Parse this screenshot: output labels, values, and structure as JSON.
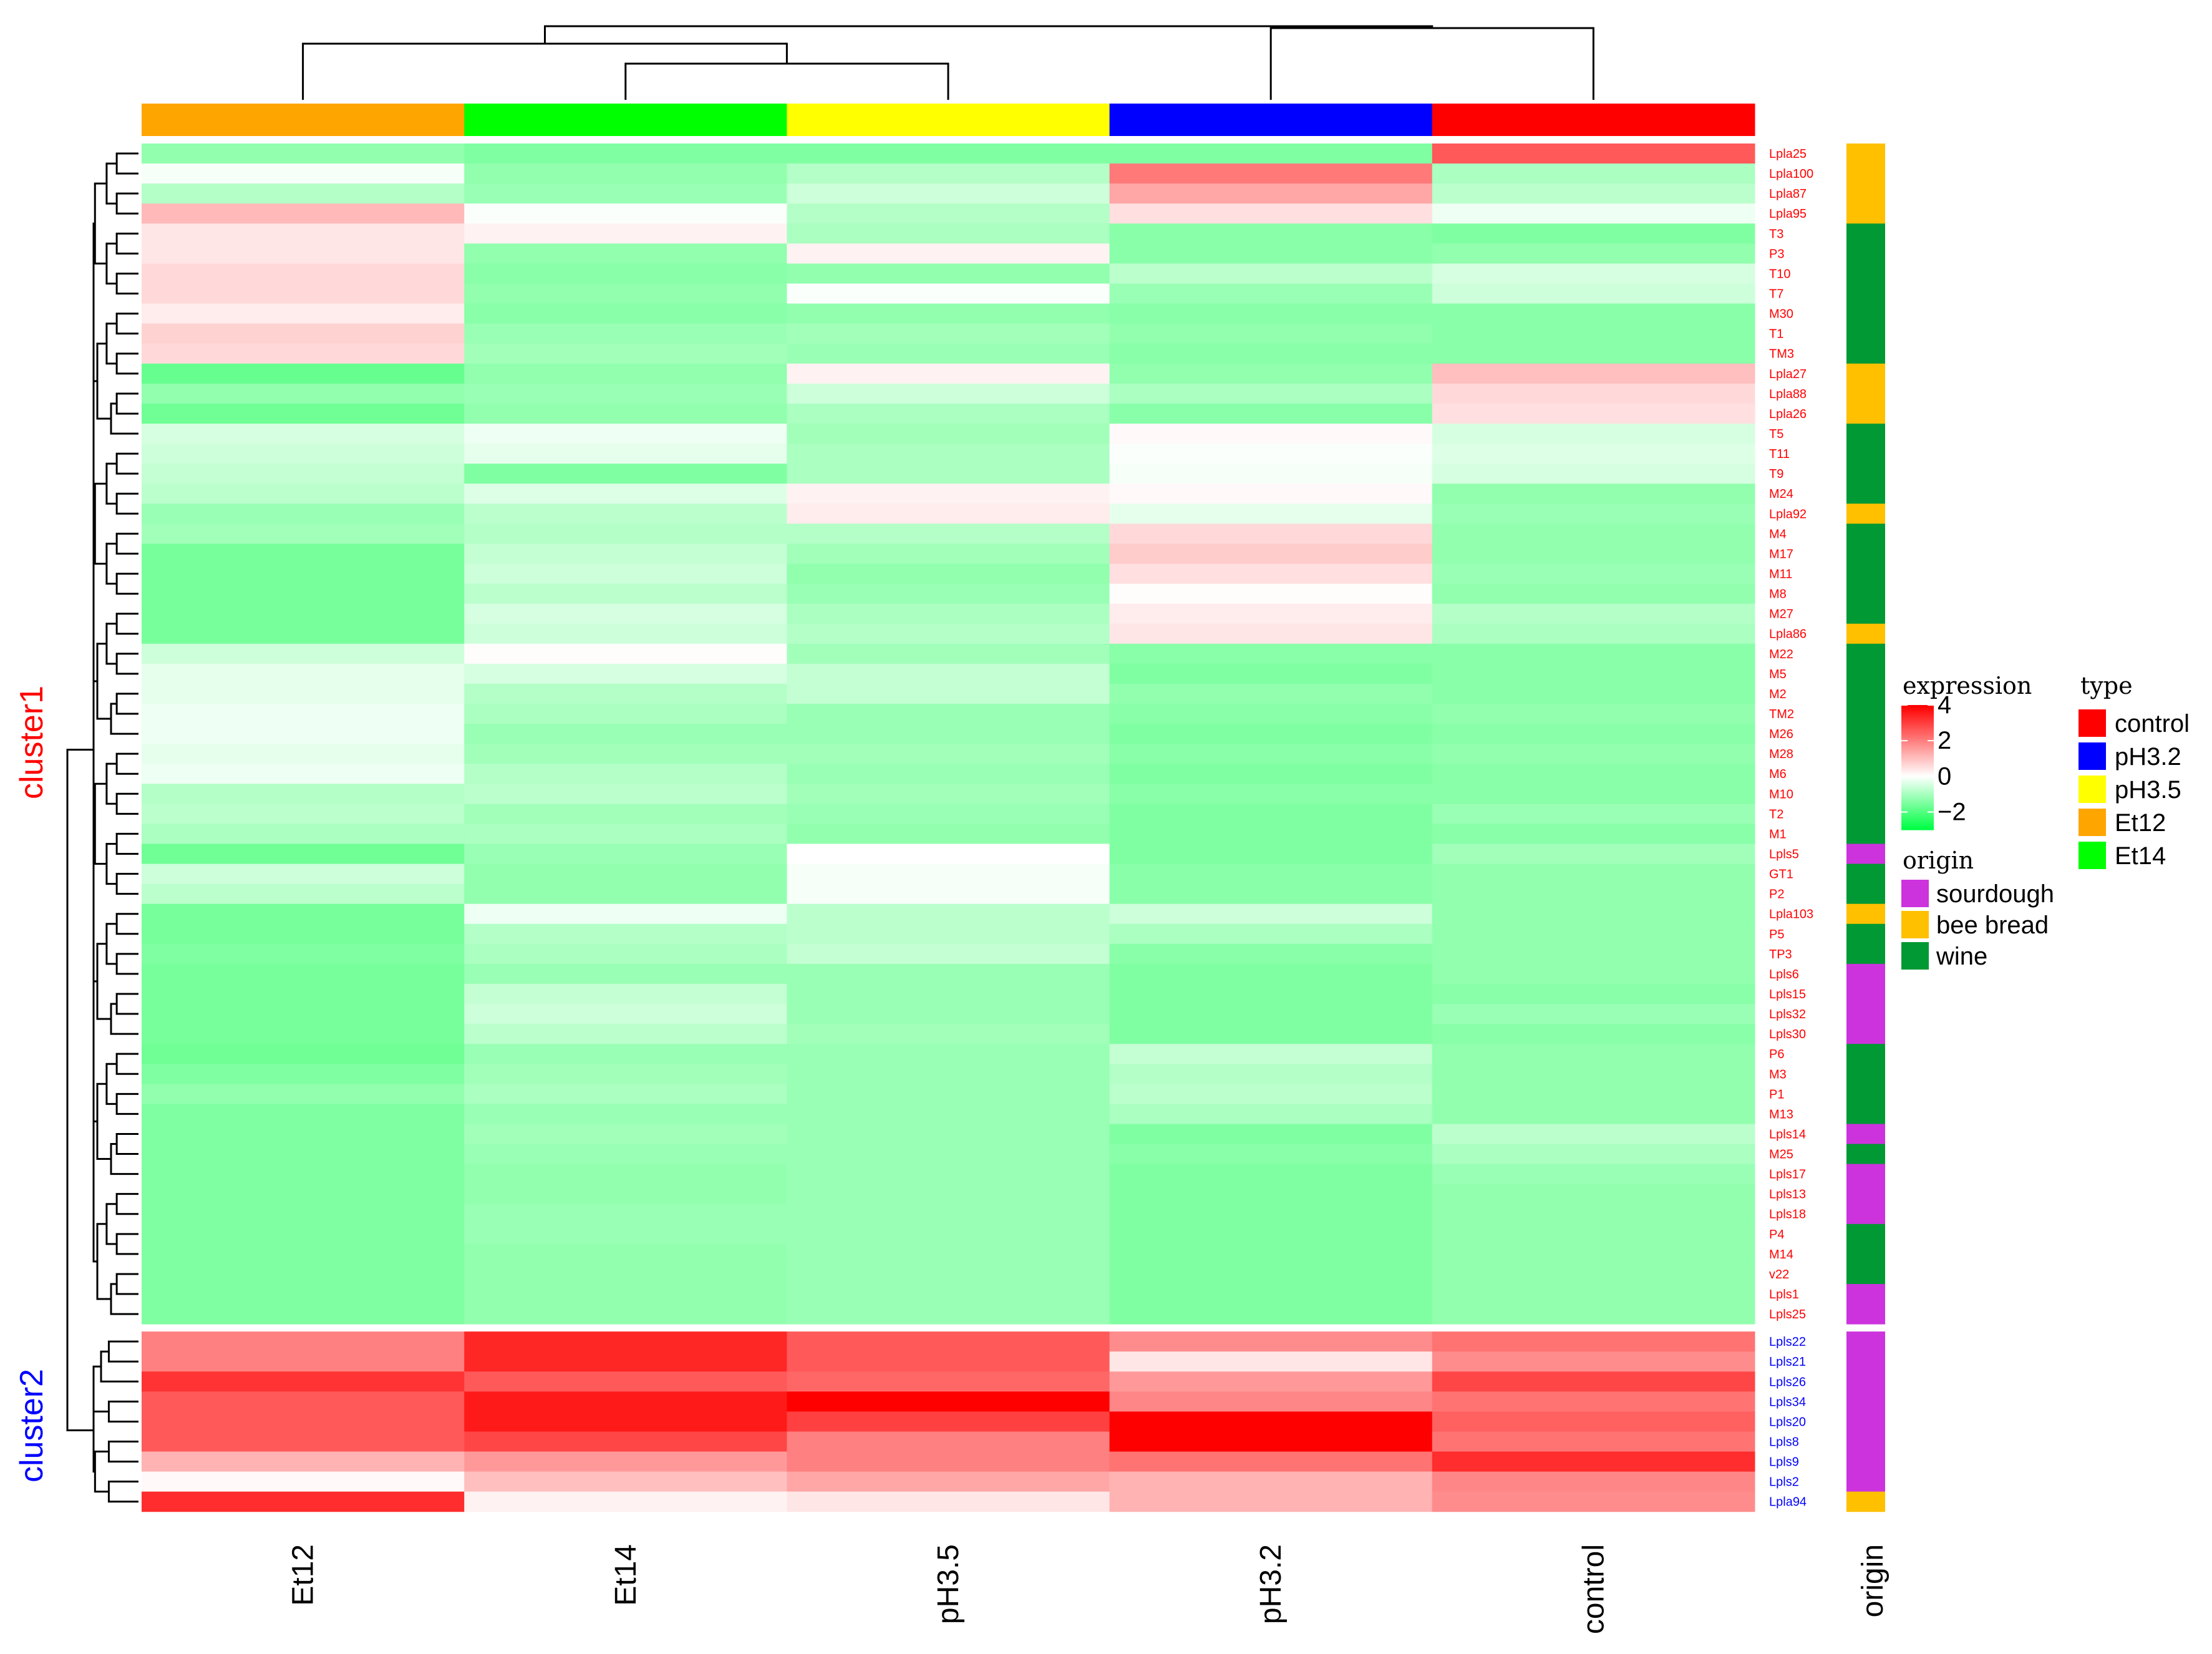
{
  "chart_data": {
    "type": "heatmap",
    "columns": [
      "Et12",
      "Et14",
      "pH3.5",
      "pH3.2",
      "control"
    ],
    "column_types": [
      "Et12",
      "Et14",
      "pH3.5",
      "pH3.2",
      "control"
    ],
    "origin_axis_label": "origin",
    "cluster_labels": [
      "cluster1",
      "cluster2"
    ],
    "colors": {
      "cluster1": "#ff0000",
      "cluster2": "#0000ff",
      "low": "#00ff44",
      "mid": "#ffffff",
      "high": "#ff0000"
    },
    "type_colors": {
      "control": "#ff0000",
      "pH3.2": "#0000ff",
      "pH3.5": "#ffff00",
      "Et12": "#ffa500",
      "Et14": "#00ff00"
    },
    "origin_colors": {
      "sourdough": "#cc33dd",
      "bee bread": "#ffc000",
      "wine": "#009933"
    },
    "legend": {
      "expression_title": "expression",
      "expression_ticks": [
        {
          "label": "4",
          "value": 4
        },
        {
          "label": "2",
          "value": 2
        },
        {
          "label": "0",
          "value": 0
        },
        {
          "label": "−2",
          "value": -2
        }
      ],
      "expression_range": [
        -3,
        4
      ],
      "type_title": "type",
      "type_entries": [
        "control",
        "pH3.2",
        "pH3.5",
        "Et12",
        "Et14"
      ],
      "origin_title": "origin",
      "origin_entries": [
        "sourdough",
        "bee bread",
        "wine"
      ]
    },
    "rows": [
      {
        "label": "Lpla25",
        "cluster": 1,
        "origin": "bee bread",
        "values": [
          -1.3,
          -1.5,
          -1.5,
          -1.5,
          2.6
        ]
      },
      {
        "label": "Lpla100",
        "cluster": 1,
        "origin": "bee bread",
        "values": [
          -0.1,
          -1.3,
          -0.9,
          2.1,
          -1.0
        ]
      },
      {
        "label": "Lpla87",
        "cluster": 1,
        "origin": "bee bread",
        "values": [
          -0.9,
          -1.2,
          -0.6,
          1.4,
          -0.8
        ]
      },
      {
        "label": "Lpla95",
        "cluster": 1,
        "origin": "bee bread",
        "values": [
          1.1,
          -0.05,
          -0.9,
          0.5,
          -0.2
        ]
      },
      {
        "label": "T3",
        "cluster": 1,
        "origin": "wine",
        "values": [
          0.4,
          0.2,
          -1.0,
          -1.4,
          -1.5
        ]
      },
      {
        "label": "P3",
        "cluster": 1,
        "origin": "wine",
        "values": [
          0.4,
          -1.3,
          0.2,
          -1.4,
          -1.3
        ]
      },
      {
        "label": "T10",
        "cluster": 1,
        "origin": "wine",
        "values": [
          0.6,
          -1.4,
          -1.3,
          -0.8,
          -0.5
        ]
      },
      {
        "label": "T7",
        "cluster": 1,
        "origin": "wine",
        "values": [
          0.6,
          -1.3,
          -0.05,
          -1.2,
          -0.6
        ]
      },
      {
        "label": "M30",
        "cluster": 1,
        "origin": "wine",
        "values": [
          0.3,
          -1.4,
          -1.3,
          -1.4,
          -1.4
        ]
      },
      {
        "label": "T1",
        "cluster": 1,
        "origin": "wine",
        "values": [
          0.7,
          -1.2,
          -1.1,
          -1.3,
          -1.4
        ]
      },
      {
        "label": "TM3",
        "cluster": 1,
        "origin": "wine",
        "values": [
          0.6,
          -1.1,
          -1.2,
          -1.4,
          -1.4
        ]
      },
      {
        "label": "Lpla27",
        "cluster": 1,
        "origin": "bee bread",
        "values": [
          -1.8,
          -1.3,
          0.2,
          -1.3,
          1.0
        ]
      },
      {
        "label": "Lpla88",
        "cluster": 1,
        "origin": "bee bread",
        "values": [
          -1.3,
          -1.2,
          -0.6,
          -1.0,
          0.6
        ]
      },
      {
        "label": "Lpla26",
        "cluster": 1,
        "origin": "bee bread",
        "values": [
          -1.7,
          -1.3,
          -1.0,
          -1.4,
          0.5
        ]
      },
      {
        "label": "T5",
        "cluster": 1,
        "origin": "wine",
        "values": [
          -0.5,
          -0.2,
          -1.1,
          0.1,
          -0.5
        ]
      },
      {
        "label": "T11",
        "cluster": 1,
        "origin": "wine",
        "values": [
          -0.6,
          -0.3,
          -1.0,
          -0.05,
          -0.4
        ]
      },
      {
        "label": "T9",
        "cluster": 1,
        "origin": "wine",
        "values": [
          -0.7,
          -1.5,
          -1.0,
          -0.1,
          -0.5
        ]
      },
      {
        "label": "M24",
        "cluster": 1,
        "origin": "wine",
        "values": [
          -0.8,
          -0.4,
          0.2,
          0.1,
          -1.3
        ]
      },
      {
        "label": "Lpla92",
        "cluster": 1,
        "origin": "bee bread",
        "values": [
          -1.2,
          -0.8,
          0.3,
          -0.3,
          -1.2
        ]
      },
      {
        "label": "M4",
        "cluster": 1,
        "origin": "wine",
        "values": [
          -1.1,
          -0.9,
          -0.9,
          0.6,
          -1.3
        ]
      },
      {
        "label": "M17",
        "cluster": 1,
        "origin": "wine",
        "values": [
          -1.6,
          -0.7,
          -1.1,
          0.8,
          -1.3
        ]
      },
      {
        "label": "M11",
        "cluster": 1,
        "origin": "wine",
        "values": [
          -1.6,
          -0.6,
          -1.3,
          0.5,
          -1.2
        ]
      },
      {
        "label": "M8",
        "cluster": 1,
        "origin": "wine",
        "values": [
          -1.6,
          -0.8,
          -1.2,
          0.05,
          -1.3
        ]
      },
      {
        "label": "M27",
        "cluster": 1,
        "origin": "wine",
        "values": [
          -1.6,
          -0.5,
          -1.0,
          0.3,
          -0.9
        ]
      },
      {
        "label": "Lpla86",
        "cluster": 1,
        "origin": "bee bread",
        "values": [
          -1.6,
          -0.6,
          -0.9,
          0.4,
          -1.0
        ]
      },
      {
        "label": "M22",
        "cluster": 1,
        "origin": "wine",
        "values": [
          -0.6,
          0.05,
          -1.1,
          -1.4,
          -1.4
        ]
      },
      {
        "label": "M5",
        "cluster": 1,
        "origin": "wine",
        "values": [
          -0.3,
          -0.5,
          -0.7,
          -1.5,
          -1.4
        ]
      },
      {
        "label": "M2",
        "cluster": 1,
        "origin": "wine",
        "values": [
          -0.3,
          -0.9,
          -0.7,
          -1.3,
          -1.4
        ]
      },
      {
        "label": "TM2",
        "cluster": 1,
        "origin": "wine",
        "values": [
          -0.2,
          -1.0,
          -1.2,
          -1.4,
          -1.3
        ]
      },
      {
        "label": "M26",
        "cluster": 1,
        "origin": "wine",
        "values": [
          -0.2,
          -1.2,
          -1.2,
          -1.5,
          -1.4
        ]
      },
      {
        "label": "M28",
        "cluster": 1,
        "origin": "wine",
        "values": [
          -0.3,
          -1.1,
          -1.1,
          -1.4,
          -1.3
        ]
      },
      {
        "label": "M6",
        "cluster": 1,
        "origin": "wine",
        "values": [
          -0.2,
          -0.9,
          -1.2,
          -1.5,
          -1.4
        ]
      },
      {
        "label": "M10",
        "cluster": 1,
        "origin": "wine",
        "values": [
          -0.9,
          -0.8,
          -1.1,
          -1.4,
          -1.4
        ]
      },
      {
        "label": "T2",
        "cluster": 1,
        "origin": "wine",
        "values": [
          -0.8,
          -1.1,
          -1.2,
          -1.5,
          -1.2
        ]
      },
      {
        "label": "M1",
        "cluster": 1,
        "origin": "wine",
        "values": [
          -1.0,
          -1.0,
          -1.3,
          -1.5,
          -1.4
        ]
      },
      {
        "label": "Lpls5",
        "cluster": 1,
        "origin": "sourdough",
        "values": [
          -1.7,
          -1.2,
          0.0,
          -1.5,
          -1.1
        ]
      },
      {
        "label": "GT1",
        "cluster": 1,
        "origin": "wine",
        "values": [
          -0.6,
          -1.3,
          -0.1,
          -1.4,
          -1.3
        ]
      },
      {
        "label": "P2",
        "cluster": 1,
        "origin": "wine",
        "values": [
          -0.8,
          -1.3,
          -0.1,
          -1.4,
          -1.3
        ]
      },
      {
        "label": "Lpla103",
        "cluster": 1,
        "origin": "bee bread",
        "values": [
          -1.6,
          -0.2,
          -0.8,
          -0.6,
          -1.3
        ]
      },
      {
        "label": "P5",
        "cluster": 1,
        "origin": "wine",
        "values": [
          -1.6,
          -0.9,
          -0.8,
          -1.0,
          -1.3
        ]
      },
      {
        "label": "TP3",
        "cluster": 1,
        "origin": "wine",
        "values": [
          -1.5,
          -1.0,
          -0.7,
          -1.4,
          -1.3
        ]
      },
      {
        "label": "Lpls6",
        "cluster": 1,
        "origin": "sourdough",
        "values": [
          -1.6,
          -1.2,
          -1.2,
          -1.5,
          -1.3
        ]
      },
      {
        "label": "Lpls15",
        "cluster": 1,
        "origin": "sourdough",
        "values": [
          -1.6,
          -0.7,
          -1.2,
          -1.5,
          -1.4
        ]
      },
      {
        "label": "Lpls32",
        "cluster": 1,
        "origin": "sourdough",
        "values": [
          -1.6,
          -0.6,
          -1.2,
          -1.5,
          -1.2
        ]
      },
      {
        "label": "Lpls30",
        "cluster": 1,
        "origin": "sourdough",
        "values": [
          -1.6,
          -0.8,
          -1.1,
          -1.5,
          -1.4
        ]
      },
      {
        "label": "P6",
        "cluster": 1,
        "origin": "wine",
        "values": [
          -1.7,
          -1.2,
          -1.2,
          -0.7,
          -1.3
        ]
      },
      {
        "label": "M3",
        "cluster": 1,
        "origin": "wine",
        "values": [
          -1.5,
          -1.1,
          -1.2,
          -0.9,
          -1.3
        ]
      },
      {
        "label": "P1",
        "cluster": 1,
        "origin": "wine",
        "values": [
          -1.3,
          -1.0,
          -1.2,
          -0.8,
          -1.3
        ]
      },
      {
        "label": "M13",
        "cluster": 1,
        "origin": "wine",
        "values": [
          -1.5,
          -1.2,
          -1.2,
          -1.0,
          -1.3
        ]
      },
      {
        "label": "Lpls14",
        "cluster": 1,
        "origin": "sourdough",
        "values": [
          -1.5,
          -1.1,
          -1.2,
          -1.5,
          -0.8
        ]
      },
      {
        "label": "M25",
        "cluster": 1,
        "origin": "wine",
        "values": [
          -1.5,
          -1.2,
          -1.2,
          -1.4,
          -1.0
        ]
      },
      {
        "label": "Lpls17",
        "cluster": 1,
        "origin": "sourdough",
        "values": [
          -1.5,
          -1.3,
          -1.2,
          -1.5,
          -1.2
        ]
      },
      {
        "label": "Lpls13",
        "cluster": 1,
        "origin": "sourdough",
        "values": [
          -1.5,
          -1.3,
          -1.2,
          -1.5,
          -1.3
        ]
      },
      {
        "label": "Lpls18",
        "cluster": 1,
        "origin": "sourdough",
        "values": [
          -1.5,
          -1.2,
          -1.2,
          -1.5,
          -1.3
        ]
      },
      {
        "label": "P4",
        "cluster": 1,
        "origin": "wine",
        "values": [
          -1.5,
          -1.2,
          -1.2,
          -1.5,
          -1.3
        ]
      },
      {
        "label": "M14",
        "cluster": 1,
        "origin": "wine",
        "values": [
          -1.5,
          -1.3,
          -1.2,
          -1.5,
          -1.3
        ]
      },
      {
        "label": "v22",
        "cluster": 1,
        "origin": "wine",
        "values": [
          -1.5,
          -1.3,
          -1.2,
          -1.5,
          -1.3
        ]
      },
      {
        "label": "Lpls1",
        "cluster": 1,
        "origin": "sourdough",
        "values": [
          -1.5,
          -1.3,
          -1.2,
          -1.5,
          -1.3
        ]
      },
      {
        "label": "Lpls25",
        "cluster": 1,
        "origin": "sourdough",
        "values": [
          -1.5,
          -1.3,
          -1.2,
          -1.5,
          -1.3
        ]
      },
      {
        "label": "Lpls22",
        "cluster": 2,
        "origin": "sourdough",
        "values": [
          2.0,
          3.4,
          2.6,
          1.8,
          2.2
        ]
      },
      {
        "label": "Lpls21",
        "cluster": 2,
        "origin": "sourdough",
        "values": [
          2.0,
          3.4,
          2.6,
          0.4,
          1.8
        ]
      },
      {
        "label": "Lpls26",
        "cluster": 2,
        "origin": "sourdough",
        "values": [
          3.2,
          2.6,
          2.4,
          1.6,
          2.9
        ]
      },
      {
        "label": "Lpls34",
        "cluster": 2,
        "origin": "sourdough",
        "values": [
          2.6,
          3.6,
          4.0,
          1.9,
          2.2
        ]
      },
      {
        "label": "Lpls20",
        "cluster": 2,
        "origin": "sourdough",
        "values": [
          2.6,
          3.6,
          3.0,
          4.0,
          2.5
        ]
      },
      {
        "label": "Lpls8",
        "cluster": 2,
        "origin": "sourdough",
        "values": [
          2.6,
          2.9,
          2.0,
          4.0,
          2.2
        ]
      },
      {
        "label": "Lpls9",
        "cluster": 2,
        "origin": "sourdough",
        "values": [
          1.2,
          1.6,
          2.0,
          2.2,
          3.3
        ]
      },
      {
        "label": "Lpls2",
        "cluster": 2,
        "origin": "sourdough",
        "values": [
          0.1,
          1.0,
          1.4,
          1.2,
          1.9
        ]
      },
      {
        "label": "Lpla94",
        "cluster": 2,
        "origin": "bee bread",
        "values": [
          3.3,
          0.2,
          0.4,
          1.2,
          1.8
        ]
      }
    ]
  }
}
